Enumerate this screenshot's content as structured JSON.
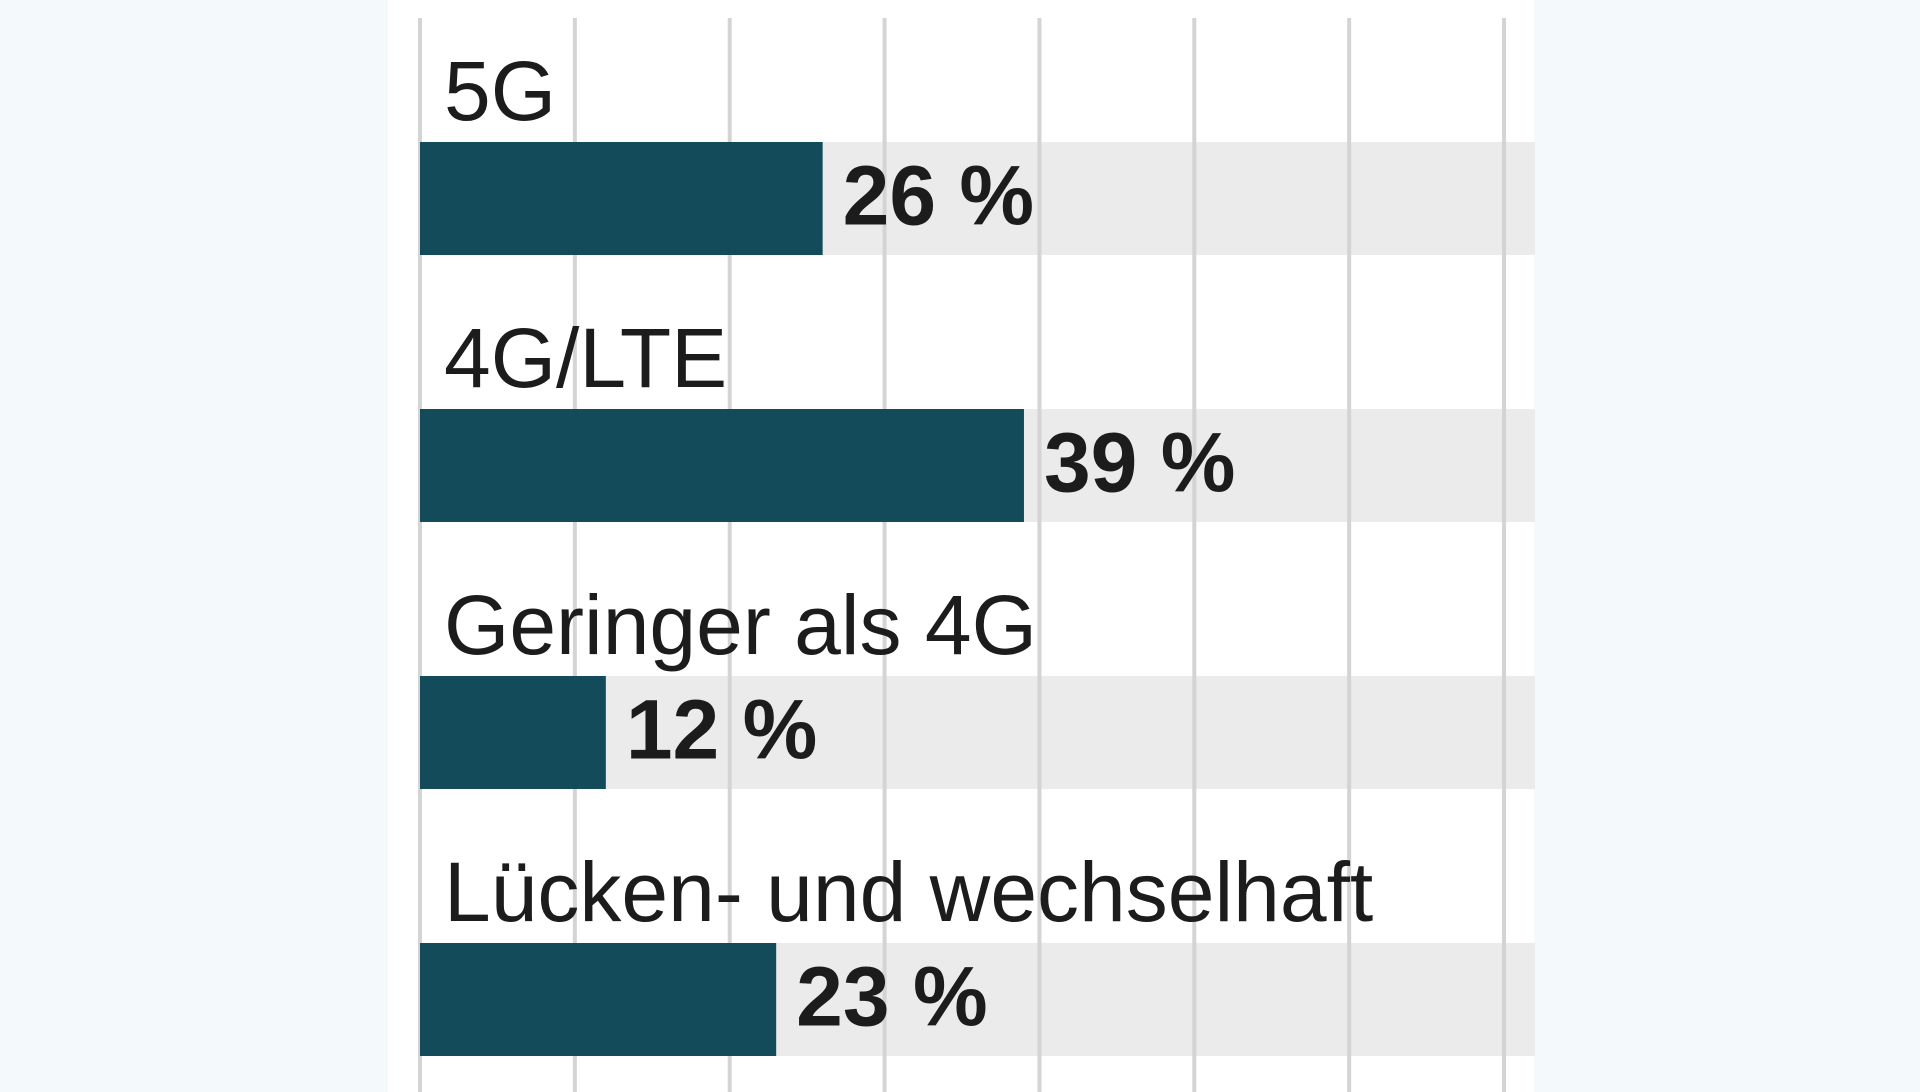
{
  "chart_data": {
    "type": "bar",
    "orientation": "horizontal",
    "categories": [
      "5G",
      "4G/LTE",
      "Geringer als 4G",
      "Lücken- und wechselhaft"
    ],
    "values": [
      26,
      39,
      12,
      23
    ],
    "value_labels": [
      "26 %",
      "39 %",
      "12 %",
      "23 %"
    ],
    "color": "#134b5a",
    "xlim": [
      0,
      72
    ],
    "xticks": [
      0,
      10,
      20,
      30,
      40,
      50,
      60,
      70
    ],
    "grid": true
  }
}
